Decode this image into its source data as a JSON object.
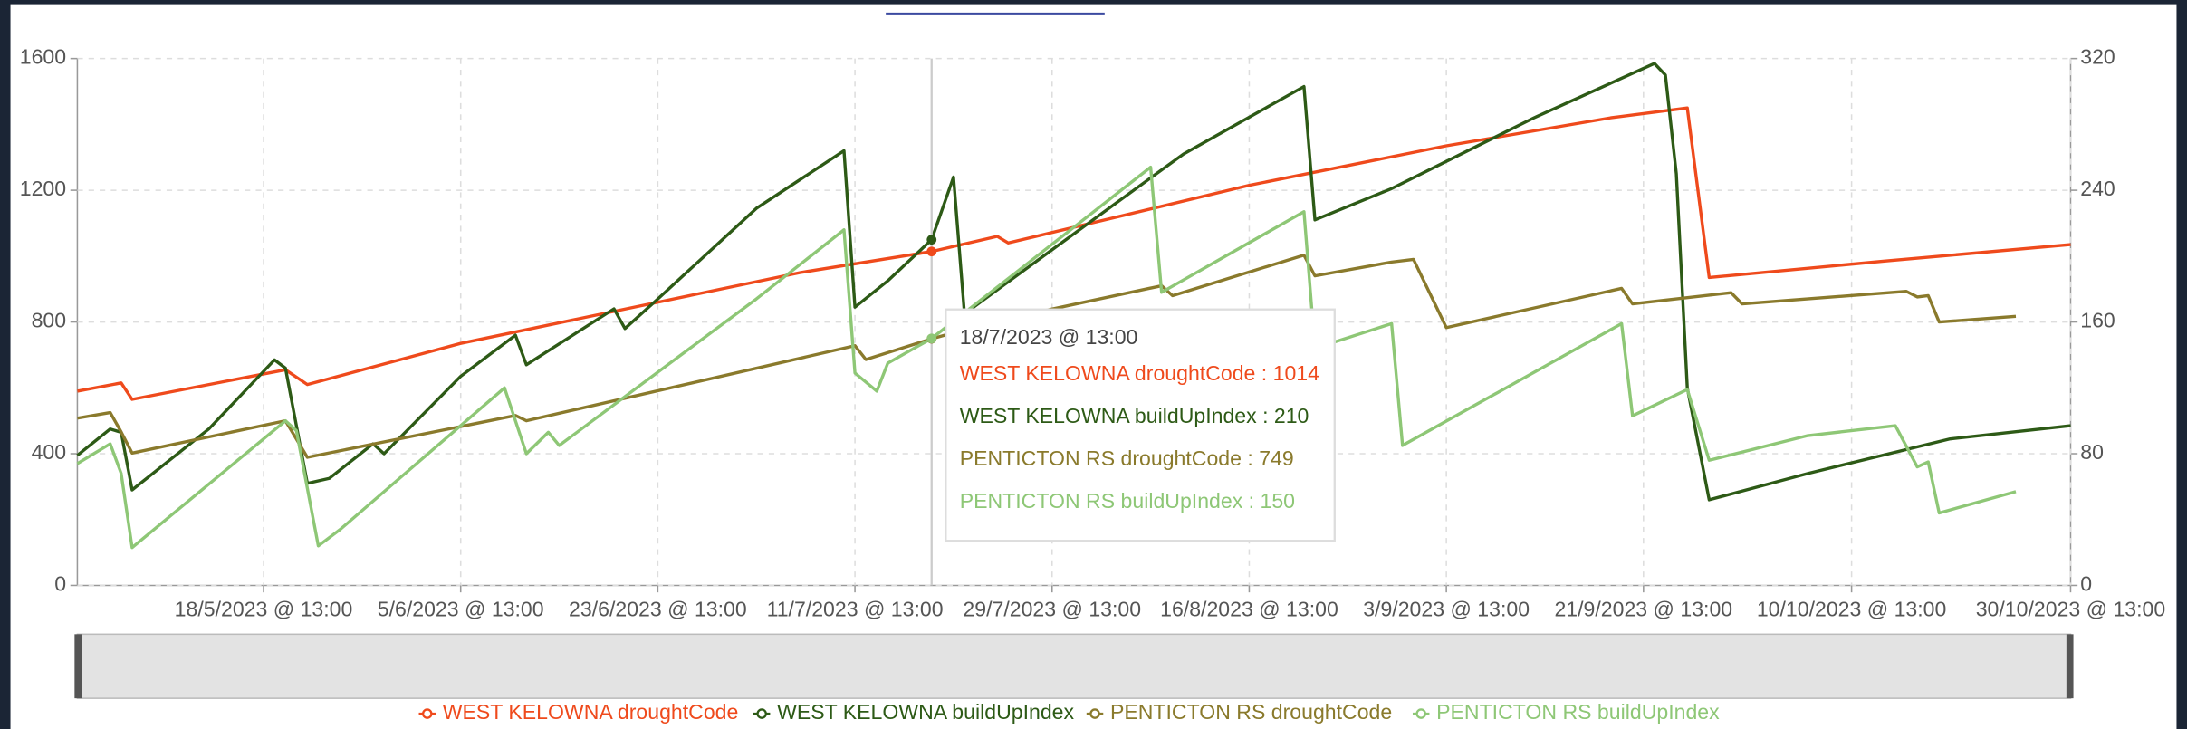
{
  "chart_data": {
    "type": "line",
    "xlim": [
      "1/5/2023 @ 13:00",
      "30/10/2023 @ 13:00"
    ],
    "xticks": [
      "18/5/2023 @ 13:00",
      "5/6/2023 @ 13:00",
      "23/6/2023 @ 13:00",
      "11/7/2023 @ 13:00",
      "29/7/2023 @ 13:00",
      "16/8/2023 @ 13:00",
      "3/9/2023 @ 13:00",
      "21/9/2023 @ 13:00",
      "10/10/2023 @ 13:00",
      "30/10/2023 @ 13:00"
    ],
    "ylim": [
      0,
      1600
    ],
    "yticks": [
      0,
      400,
      800,
      1200,
      1600
    ],
    "y2lim": [
      0,
      320
    ],
    "y2ticks": [
      0,
      80,
      160,
      240,
      320
    ],
    "grid": true,
    "legend": "bottom",
    "series": [
      {
        "name": "WEST KELOWNA droughtCode",
        "color": "#ef4a1c",
        "axis": "y",
        "x": [
          "1/5/2023 @ 13:00",
          "5/5/2023 @ 13:00",
          "6/5/2023 @ 13:00",
          "20/5/2023 @ 13:00",
          "22/5/2023 @ 13:00",
          "5/6/2023 @ 13:00",
          "23/6/2023 @ 13:00",
          "6/7/2023 @ 13:00",
          "18/7/2023 @ 13:00",
          "24/7/2023 @ 13:00",
          "25/7/2023 @ 13:00",
          "16/8/2023 @ 13:00",
          "3/9/2023 @ 13:00",
          "18/9/2023 @ 13:00",
          "25/9/2023 @ 13:00",
          "27/9/2023 @ 13:00",
          "13/10/2023 @ 13:00",
          "30/10/2023 @ 13:00"
        ],
        "values": [
          590,
          615,
          565,
          655,
          610,
          735,
          860,
          950,
          1014,
          1060,
          1040,
          1215,
          1335,
          1420,
          1450,
          935,
          985,
          1035
        ]
      },
      {
        "name": "WEST KELOWNA buildUpIndex",
        "color": "#2d5a16",
        "axis": "y2",
        "x": [
          "1/5/2023 @ 13:00",
          "4/5/2023 @ 13:00",
          "5/5/2023 @ 13:00",
          "6/5/2023 @ 13:00",
          "13/5/2023 @ 13:00",
          "19/5/2023 @ 13:00",
          "20/5/2023 @ 13:00",
          "22/5/2023 @ 13:00",
          "24/5/2023 @ 13:00",
          "28/5/2023 @ 13:00",
          "29/5/2023 @ 13:00",
          "5/6/2023 @ 13:00",
          "10/6/2023 @ 13:00",
          "11/6/2023 @ 13:00",
          "19/6/2023 @ 13:00",
          "20/6/2023 @ 13:00",
          "23/6/2023 @ 13:00",
          "2/7/2023 @ 13:00",
          "10/7/2023 @ 13:00",
          "11/7/2023 @ 13:00",
          "14/7/2023 @ 13:00",
          "18/7/2023 @ 13:00",
          "20/7/2023 @ 13:00",
          "21/7/2023 @ 13:00",
          "4/8/2023 @ 13:00",
          "10/8/2023 @ 13:00",
          "21/8/2023 @ 13:00",
          "22/8/2023 @ 13:00",
          "29/8/2023 @ 13:00",
          "11/9/2023 @ 13:00",
          "22/9/2023 @ 13:00",
          "23/9/2023 @ 13:00",
          "24/9/2023 @ 13:00",
          "25/9/2023 @ 13:00",
          "27/9/2023 @ 13:00",
          "6/10/2023 @ 13:00",
          "19/10/2023 @ 13:00",
          "30/10/2023 @ 13:00"
        ],
        "values": [
          79,
          95,
          93,
          58,
          95,
          137,
          132,
          62,
          65,
          86,
          80,
          127,
          152,
          134,
          168,
          156,
          174,
          229,
          264,
          169,
          185,
          210,
          248,
          165,
          233,
          262,
          303,
          222,
          241,
          284,
          317,
          310,
          250,
          120,
          52,
          68,
          89,
          97
        ]
      },
      {
        "name": "PENTICTON RS droughtCode",
        "color": "#8a7a2c",
        "axis": "y",
        "x": [
          "1/5/2023 @ 13:00",
          "4/5/2023 @ 13:00",
          "5/5/2023 @ 13:00",
          "6/5/2023 @ 13:00",
          "20/5/2023 @ 13:00",
          "22/5/2023 @ 13:00",
          "10/6/2023 @ 13:00",
          "11/6/2023 @ 13:00",
          "11/7/2023 @ 13:00",
          "12/7/2023 @ 13:00",
          "18/7/2023 @ 13:00",
          "24/7/2023 @ 13:00",
          "8/8/2023 @ 13:00",
          "9/8/2023 @ 13:00",
          "21/8/2023 @ 13:00",
          "22/8/2023 @ 13:00",
          "29/8/2023 @ 13:00",
          "31/8/2023 @ 13:00",
          "3/9/2023 @ 13:00",
          "19/9/2023 @ 13:00",
          "20/9/2023 @ 13:00",
          "29/9/2023 @ 13:00",
          "30/9/2023 @ 13:00",
          "15/10/2023 @ 13:00",
          "16/10/2023 @ 13:00",
          "17/10/2023 @ 13:00",
          "18/10/2023 @ 13:00",
          "25/10/2023 @ 13:00"
        ],
        "values": [
          508,
          525,
          466,
          402,
          500,
          389,
          516,
          500,
          728,
          686,
          749,
          804,
          910,
          880,
          1003,
          940,
          982,
          990,
          783,
          902,
          855,
          889,
          855,
          893,
          876,
          880,
          800,
          817
        ]
      },
      {
        "name": "PENTICTON RS buildUpIndex",
        "color": "#8ec776",
        "axis": "y2",
        "x": [
          "1/5/2023 @ 13:00",
          "4/5/2023 @ 13:00",
          "5/5/2023 @ 13:00",
          "6/5/2023 @ 13:00",
          "20/5/2023 @ 13:00",
          "21/5/2023 @ 13:00",
          "23/5/2023 @ 13:00",
          "25/5/2023 @ 13:00",
          "9/6/2023 @ 13:00",
          "11/6/2023 @ 13:00",
          "13/6/2023 @ 13:00",
          "14/6/2023 @ 13:00",
          "2/7/2023 @ 13:00",
          "10/7/2023 @ 13:00",
          "11/7/2023 @ 13:00",
          "13/7/2023 @ 13:00",
          "14/7/2023 @ 13:00",
          "18/7/2023 @ 13:00",
          "7/8/2023 @ 13:00",
          "8/8/2023 @ 13:00",
          "21/8/2023 @ 13:00",
          "22/8/2023 @ 13:00",
          "29/8/2023 @ 13:00",
          "30/8/2023 @ 13:00",
          "19/9/2023 @ 13:00",
          "20/9/2023 @ 13:00",
          "25/9/2023 @ 13:00",
          "27/9/2023 @ 13:00",
          "6/10/2023 @ 13:00",
          "14/10/2023 @ 13:00",
          "16/10/2023 @ 13:00",
          "17/10/2023 @ 13:00",
          "18/10/2023 @ 13:00",
          "25/10/2023 @ 13:00"
        ],
        "values": [
          74,
          86,
          68,
          23,
          100,
          94,
          24,
          34,
          120,
          80,
          93,
          85,
          174,
          216,
          129,
          118,
          135,
          150,
          254,
          178,
          227,
          144,
          159,
          85,
          159,
          103,
          119,
          76,
          91,
          97,
          72,
          75,
          44,
          57
        ]
      }
    ],
    "tooltip": {
      "title": "18/7/2023 @ 13:00",
      "lines": [
        "WEST KELOWNA droughtCode : 1014",
        "WEST KELOWNA buildUpIndex : 210",
        "PENTICTON RS droughtCode : 749",
        "PENTICTON RS buildUpIndex : 150"
      ]
    }
  }
}
